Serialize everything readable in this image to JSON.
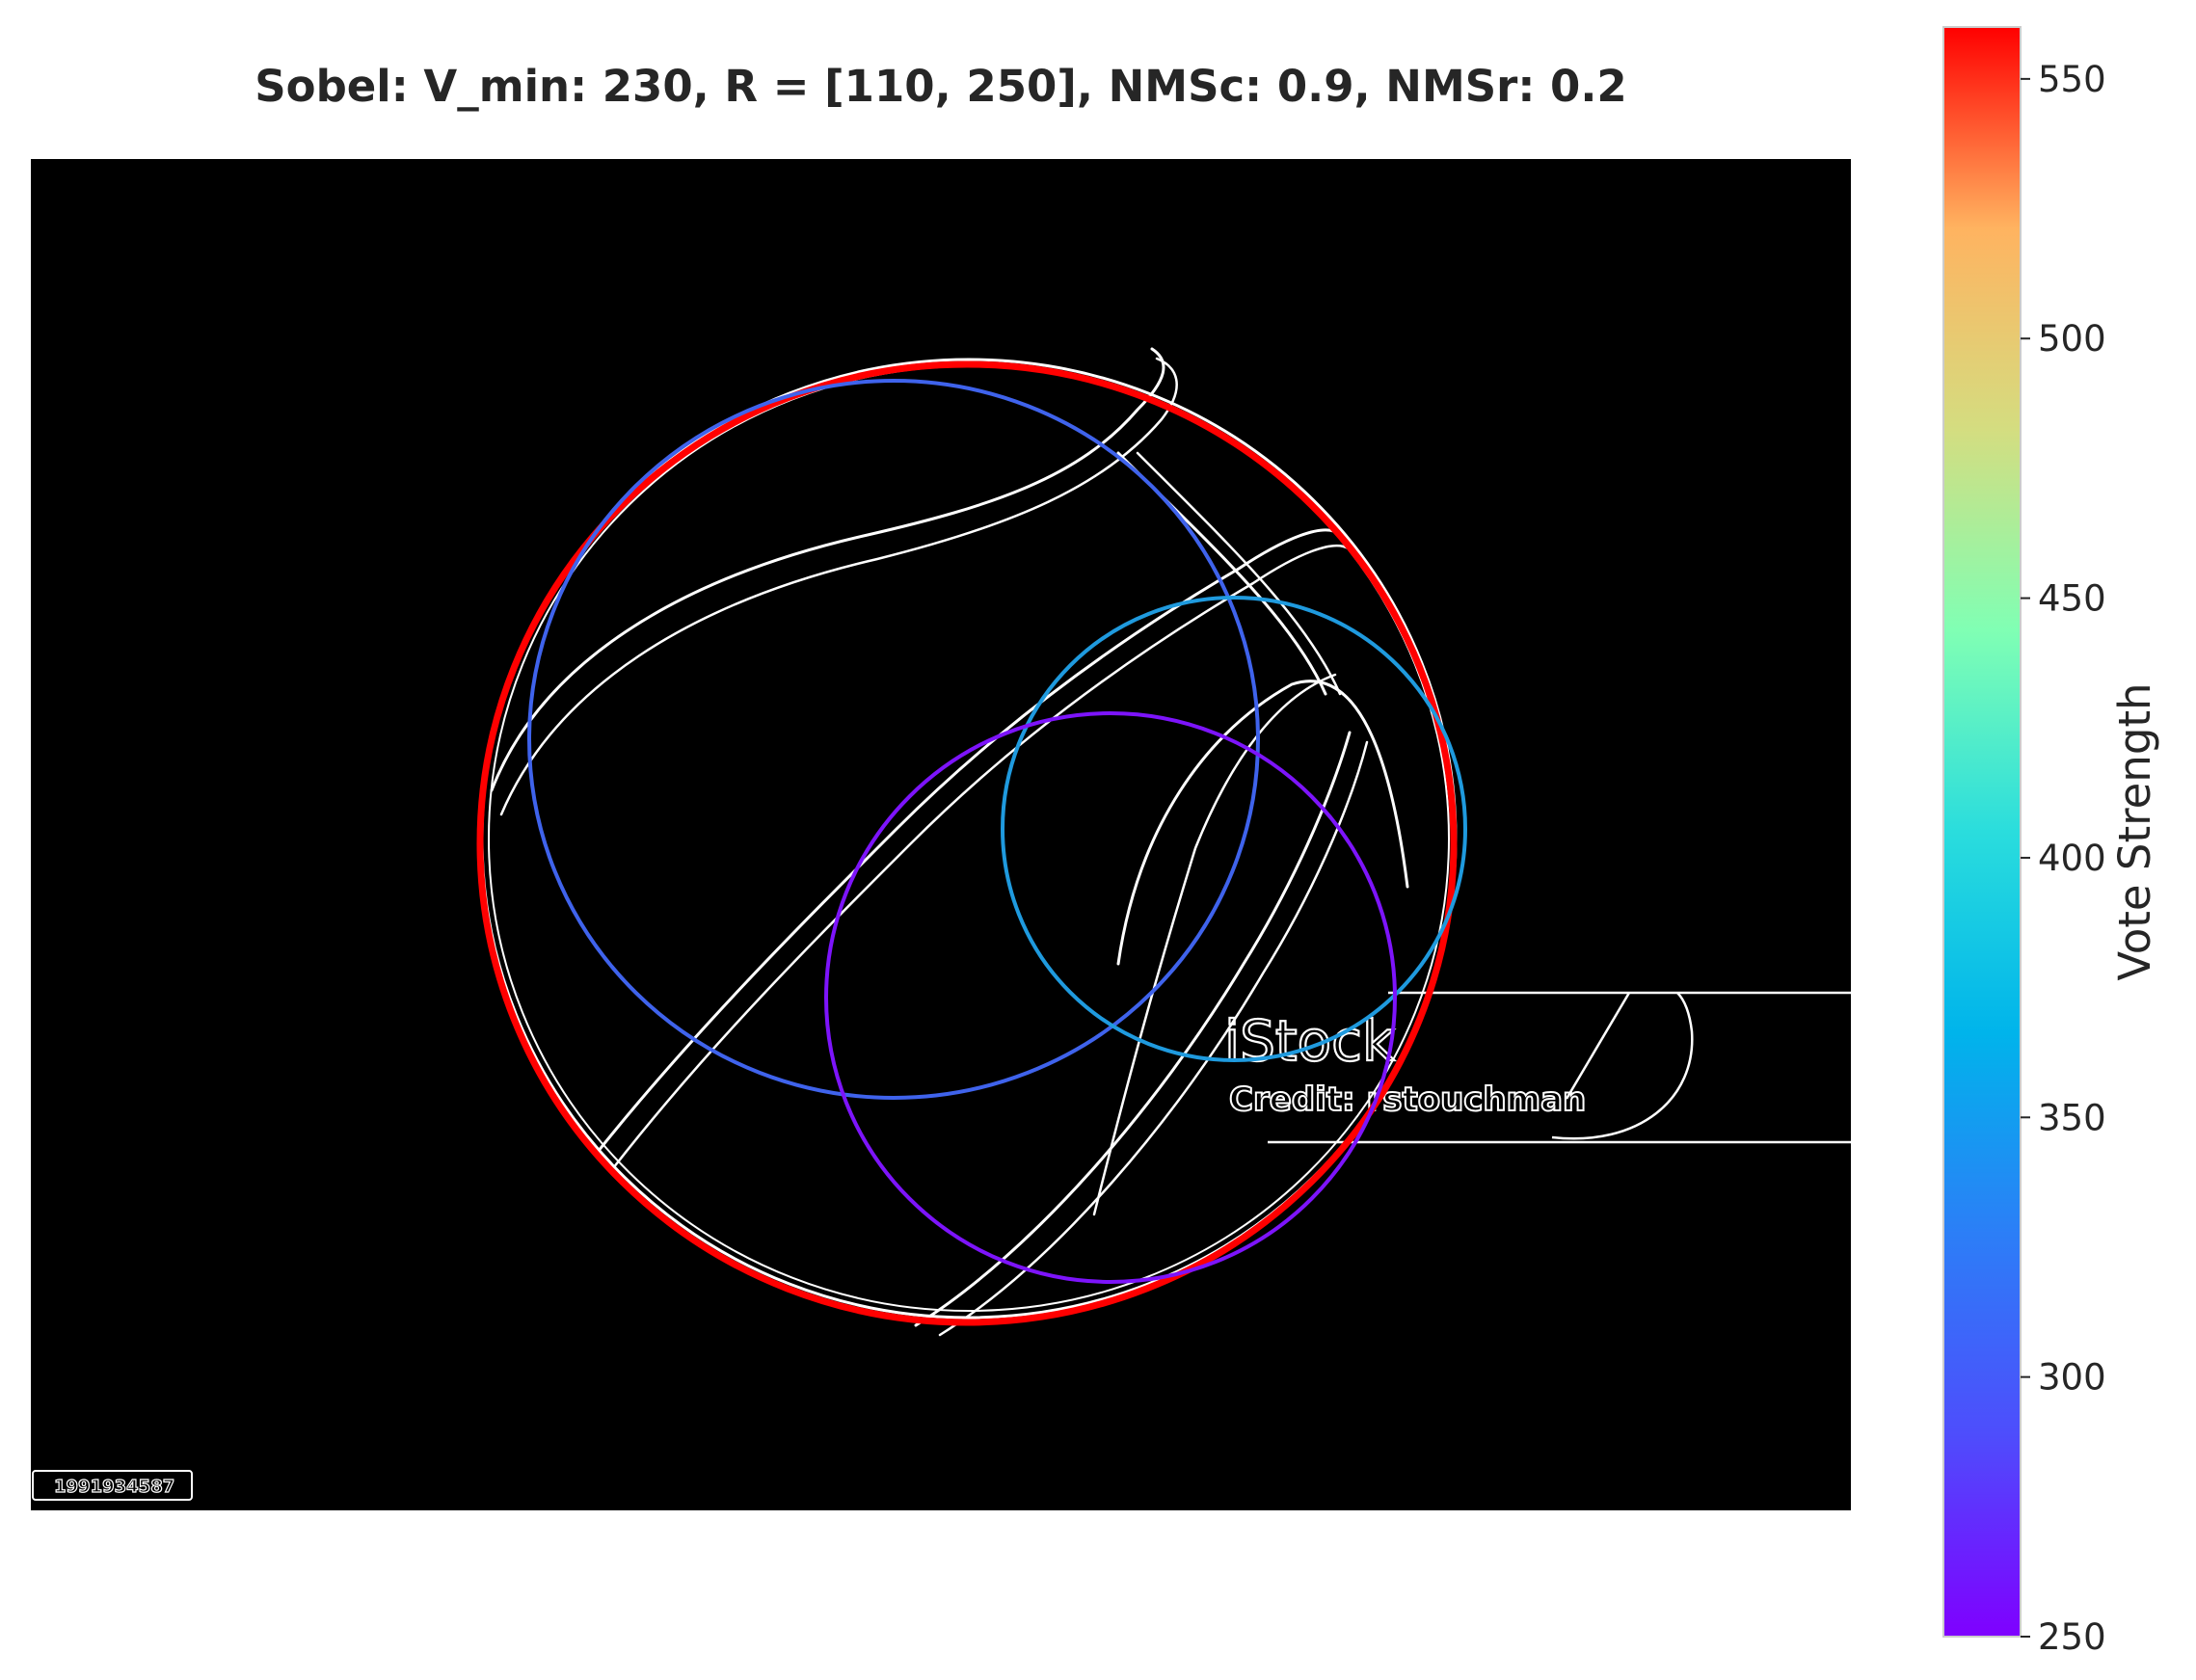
{
  "chart_data": {
    "type": "image-overlay",
    "title": "Sobel: V_min: 230, R = [110, 250], NMSc: 0.9, NMSr: 0.2",
    "colorbar": {
      "label": "Vote Strength",
      "colormap": "rainbow",
      "range": [
        250,
        560
      ],
      "ticks": [
        "250",
        "300",
        "350",
        "400",
        "450",
        "500",
        "550"
      ],
      "tick_values": [
        250,
        300,
        350,
        400,
        450,
        500,
        550
      ]
    },
    "detected_circles": [
      {
        "votes": 558,
        "color": "#ff0000"
      },
      {
        "votes": 290,
        "color": "#3f63ec"
      },
      {
        "votes": 315,
        "color": "#1f9ade"
      },
      {
        "votes": 262,
        "color": "#7d14fb"
      }
    ],
    "image": {
      "background": "#000000",
      "edge_color": "#ffffff",
      "watermark_brand": "iStock",
      "watermark_credit": "Credit: rstouchman",
      "image_id": "1991934587"
    }
  }
}
